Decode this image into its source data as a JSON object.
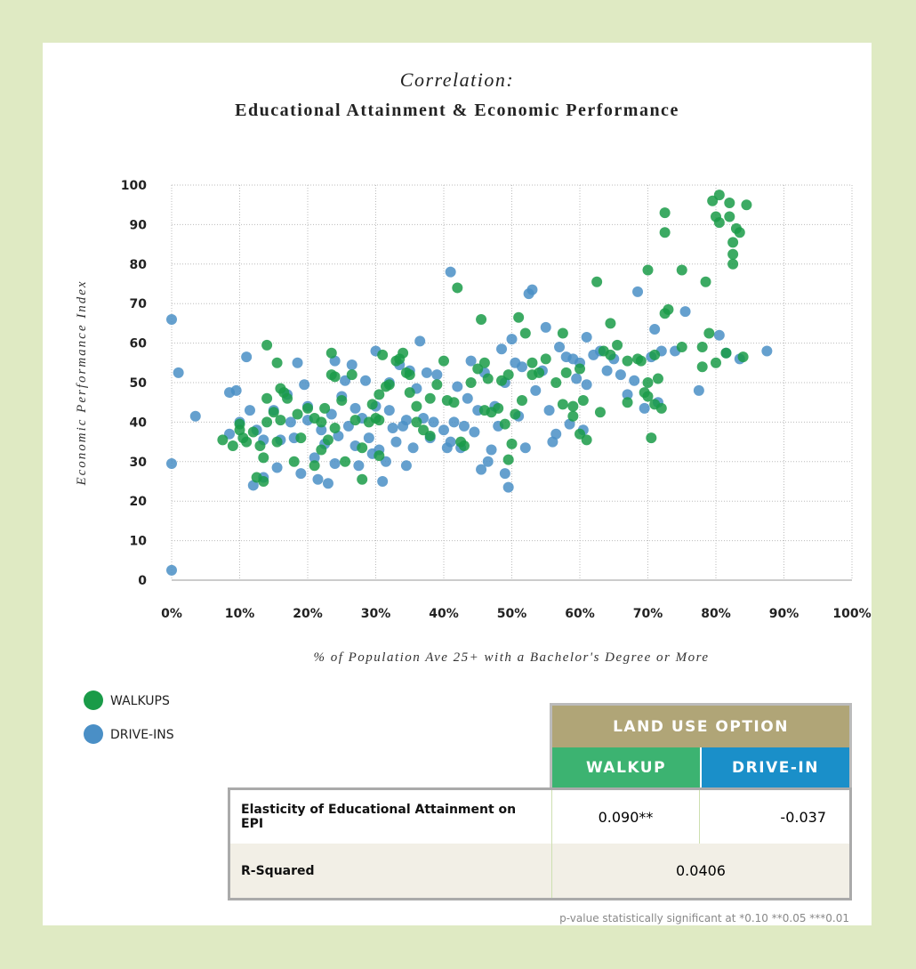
{
  "chart_data": {
    "type": "scatter",
    "title": "Correlation:",
    "subtitle": "Educational Attainment & Economic Performance",
    "x_label": "% of Population Ave 25+ with a Bachelor's Degree or More",
    "y_label": "Economic Performance Index",
    "xlim": [
      0,
      100
    ],
    "ylim": [
      0,
      100
    ],
    "xticks": [
      {
        "value": 0,
        "label": "0%"
      },
      {
        "value": 10,
        "label": "10%"
      },
      {
        "value": 20,
        "label": "20%"
      },
      {
        "value": 30,
        "label": "30%"
      },
      {
        "value": 40,
        "label": "40%"
      },
      {
        "value": 50,
        "label": "50%"
      },
      {
        "value": 60,
        "label": "60%"
      },
      {
        "value": 70,
        "label": "70%"
      },
      {
        "value": 80,
        "label": "80%"
      },
      {
        "value": 90,
        "label": "90%"
      },
      {
        "value": 100,
        "label": "100%"
      }
    ],
    "yticks": [
      0,
      10,
      20,
      30,
      40,
      50,
      60,
      70,
      80,
      90,
      100
    ],
    "grid": true,
    "series": [
      {
        "name": "DRIVE-INS",
        "color": "#4a8fc6",
        "x": [
          0,
          0,
          0,
          1,
          3.5,
          8.5,
          8.5,
          9.5,
          10,
          11,
          11.5,
          12,
          12.5,
          13.5,
          13.5,
          15,
          15.5,
          16,
          17,
          17.5,
          18,
          18.5,
          19,
          19.5,
          20,
          20,
          21,
          21.5,
          22,
          22.5,
          23,
          23.5,
          24,
          24,
          24.5,
          25,
          25.5,
          26,
          26.5,
          27,
          27,
          27.5,
          28,
          28.5,
          29,
          29.5,
          30,
          30,
          30.5,
          31,
          31.5,
          32,
          32,
          32.5,
          33,
          33.5,
          34,
          34.5,
          34.5,
          35,
          35.5,
          36,
          36.5,
          37,
          37.5,
          38,
          38.5,
          39,
          40,
          40.5,
          41,
          41,
          41.5,
          42,
          42.5,
          43,
          43.5,
          44,
          44.5,
          45,
          45.5,
          46,
          46.5,
          47,
          47.5,
          48,
          48.5,
          49,
          49,
          49.5,
          50,
          50.5,
          51,
          51.5,
          52,
          52.5,
          53,
          53.5,
          54.5,
          55,
          55.5,
          56,
          56.5,
          57,
          58,
          58.5,
          59,
          59.5,
          60,
          60.5,
          61,
          61,
          62,
          63,
          64,
          65,
          66,
          67,
          68,
          68.5,
          69.5,
          70.5,
          71,
          71.5,
          72,
          74,
          75.5,
          77.5,
          80.5,
          81.5,
          83.5,
          87.5
        ],
        "values": [
          66,
          29.5,
          2.5,
          52.5,
          41.5,
          47.5,
          37,
          48,
          40,
          56.5,
          43,
          24,
          38,
          35.5,
          26,
          43,
          28.5,
          35.5,
          47,
          40,
          36,
          55,
          27,
          49.5,
          44,
          40.5,
          31,
          25.5,
          38,
          34.5,
          24.5,
          42,
          29.5,
          55.5,
          36.5,
          46.5,
          50.5,
          39,
          54.5,
          34,
          43.5,
          29,
          41,
          50.5,
          36,
          32,
          58,
          44,
          33,
          25,
          30,
          43,
          50,
          38.5,
          35,
          54.5,
          39,
          29,
          40.5,
          53,
          33.5,
          48.5,
          60.5,
          41,
          52.5,
          36,
          40,
          52,
          38,
          33.5,
          35,
          78,
          40,
          49,
          33.5,
          39,
          46,
          55.5,
          37.5,
          43,
          28,
          52.5,
          30,
          33,
          44,
          39,
          58.5,
          27,
          50,
          23.5,
          61,
          55,
          41.5,
          54,
          33.5,
          72.5,
          73.5,
          48,
          53,
          64,
          43,
          35,
          37,
          59,
          56.5,
          39.5,
          56,
          51,
          55,
          38,
          61.5,
          49.5,
          57,
          58,
          53,
          56,
          52,
          47,
          50.5,
          73,
          43.5,
          56.5,
          63.5,
          45,
          58,
          58,
          68,
          48,
          62,
          57.5,
          56,
          58
        ]
      },
      {
        "name": "WALKUPS",
        "color": "#1a9b48",
        "x": [
          7.5,
          9,
          10,
          10,
          10.5,
          11,
          12,
          12.5,
          13,
          13.5,
          13.5,
          14,
          14,
          14,
          15,
          15.5,
          15.5,
          16,
          16,
          16.5,
          17,
          18,
          18.5,
          19,
          20,
          21,
          21,
          22,
          22,
          22.5,
          23,
          23.5,
          23.5,
          24,
          24,
          25,
          25.5,
          26.5,
          27,
          28,
          28,
          29,
          29.5,
          30,
          30.5,
          30.5,
          30.5,
          31,
          31.5,
          32,
          33,
          33.5,
          34,
          34.5,
          35,
          35,
          36,
          36,
          37,
          38,
          38,
          39,
          40,
          40.5,
          41.5,
          42,
          42.5,
          43,
          44,
          45,
          45.5,
          46,
          46,
          46.5,
          47,
          48,
          48.5,
          49,
          49.5,
          49.5,
          50,
          50.5,
          51,
          51.5,
          52,
          53,
          53,
          54,
          55,
          56.5,
          57.5,
          57.5,
          58,
          59,
          59,
          60,
          60,
          60.5,
          61,
          62.5,
          63,
          63.5,
          64.5,
          64.5,
          65.5,
          67,
          67,
          68.5,
          69,
          69.5,
          70,
          70,
          70,
          70.5,
          71,
          71,
          71.5,
          72,
          72.5,
          72.5,
          72.5,
          73,
          75,
          75,
          78,
          78,
          78.5,
          79,
          79.5,
          80,
          80,
          80.5,
          80.5,
          81.5,
          82,
          82,
          82.5,
          82.5,
          82.5,
          83,
          83.5,
          84,
          84.5
        ],
        "values": [
          35.5,
          34,
          39.5,
          38,
          36,
          35,
          37.5,
          26,
          34,
          25,
          31,
          46,
          59.5,
          40,
          42.5,
          55,
          35,
          40.5,
          48.5,
          47.5,
          46,
          30,
          42,
          36,
          43.5,
          41,
          29,
          40,
          33,
          43.5,
          35.5,
          57.5,
          52,
          38.5,
          51.5,
          45.5,
          30,
          52,
          40.5,
          25.5,
          33.5,
          40,
          44.5,
          41,
          47,
          40.5,
          31.5,
          57,
          49,
          49.5,
          55.5,
          56,
          57.5,
          52.5,
          47.5,
          52,
          40,
          44,
          38,
          46,
          36.5,
          49.5,
          55.5,
          45.5,
          45,
          74,
          35,
          34,
          50,
          53.5,
          66,
          43,
          55,
          51,
          42.5,
          43.5,
          50.5,
          39.5,
          30.5,
          52,
          34.5,
          42,
          66.5,
          45.5,
          62.5,
          52,
          55,
          52.5,
          56,
          50,
          62.5,
          44.5,
          52.5,
          44,
          41.5,
          37,
          53.5,
          45.5,
          35.5,
          75.5,
          42.5,
          58,
          65,
          57,
          59.5,
          55.5,
          45,
          56,
          55.5,
          47.5,
          46.5,
          78.5,
          50,
          36,
          44.5,
          57,
          51,
          43.5,
          93,
          67.5,
          88,
          68.5,
          78.5,
          59,
          54,
          59,
          75.5,
          62.5,
          96,
          55,
          92,
          97.5,
          90.5,
          57.5,
          95.5,
          92,
          82.5,
          80,
          85.5,
          89,
          88,
          56.5,
          95
        ]
      }
    ]
  },
  "table": {
    "header": "LAND USE OPTION",
    "columns": [
      "WALKUP",
      "DRIVE-IN"
    ],
    "rows": [
      [
        "Elasticity of Educational Attainment on EPI",
        "0.090**",
        "-0.037"
      ],
      [
        "R-Squared",
        "0.0406"
      ]
    ],
    "note": "p-value statistically significant at *0.10 **0.05 ***0.01"
  }
}
